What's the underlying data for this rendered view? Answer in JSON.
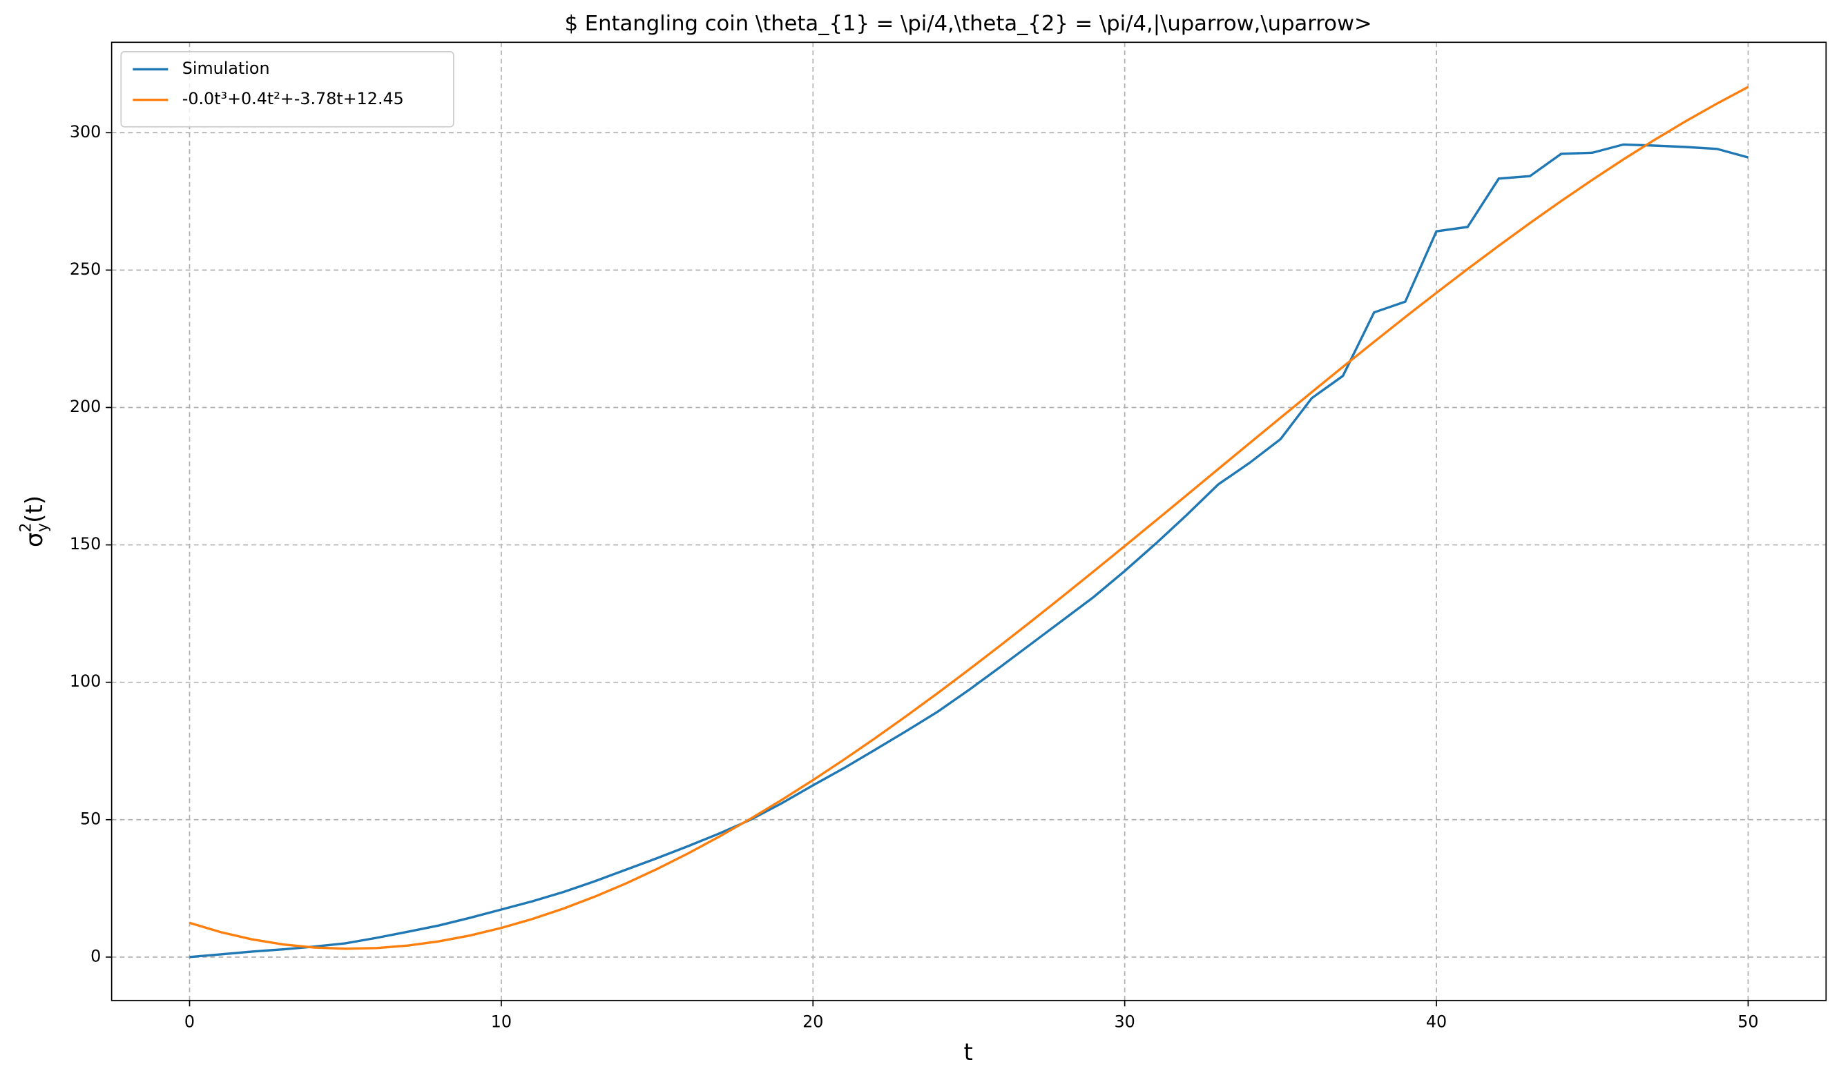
{
  "chart_data": {
    "type": "line",
    "title": "$ Entangling coin \\theta_{1} = \\pi/4,\\theta_{2} = \\pi/4,|\\uparrow,\\uparrow>",
    "xlabel": "t",
    "ylabel": {
      "base": "σ",
      "sup": "2",
      "sub": "y",
      "rest": "(t)"
    },
    "x": [
      0,
      1,
      2,
      3,
      4,
      5,
      6,
      7,
      8,
      9,
      10,
      11,
      12,
      13,
      14,
      15,
      16,
      17,
      18,
      19,
      20,
      21,
      22,
      23,
      24,
      25,
      26,
      27,
      28,
      29,
      30,
      31,
      32,
      33,
      34,
      35,
      36,
      37,
      38,
      39,
      40,
      41,
      42,
      43,
      44,
      45,
      46,
      47,
      48,
      49,
      50
    ],
    "series": [
      {
        "name": "Simulation",
        "color": "#1f77b4",
        "values": [
          0,
          1,
          2,
          2.8,
          3.8,
          5,
          7,
          9.2,
          11.5,
          14.3,
          17.3,
          20.3,
          23.7,
          27.6,
          31.8,
          36,
          40.4,
          45,
          50,
          56,
          62.5,
          68.8,
          75.5,
          82.3,
          89.3,
          97.2,
          105.5,
          114,
          122.5,
          131,
          140.5,
          150.5,
          161,
          172,
          179.8,
          188.5,
          203.4,
          211.5,
          234.6,
          238.5,
          264.1,
          265.7,
          283.3,
          284.2,
          292.3,
          292.7,
          295.7,
          295.3,
          294.8,
          294.1,
          291
        ]
      },
      {
        "name": "-0.0t³+0.4t²+-3.78t+12.45",
        "color": "#ff7f0e",
        "values": [
          12.45,
          9.07,
          6.46,
          4.6,
          3.47,
          3.04,
          3.29,
          4.2,
          5.73,
          7.87,
          10.6,
          13.87,
          17.68,
          22,
          26.8,
          32.06,
          37.76,
          43.87,
          50.36,
          57.22,
          64.41,
          71.92,
          79.71,
          87.77,
          96.07,
          104.59,
          113.3,
          122.18,
          131.19,
          140.33,
          149.57,
          158.87,
          168.22,
          177.59,
          186.95,
          196.29,
          205.58,
          214.79,
          223.9,
          232.9,
          241.73,
          250.39,
          258.86,
          267.11,
          275.11,
          282.84,
          290.29,
          297.41,
          304.19,
          310.6,
          316.64
        ]
      }
    ],
    "xlim": [
      -2.5,
      52.5
    ],
    "xticks": [
      0,
      10,
      20,
      30,
      40,
      50
    ],
    "ylim": [
      -15.8,
      332.9
    ],
    "yticks": [
      0,
      50,
      100,
      150,
      200,
      250,
      300
    ],
    "grid": true,
    "legend": "upper left"
  }
}
